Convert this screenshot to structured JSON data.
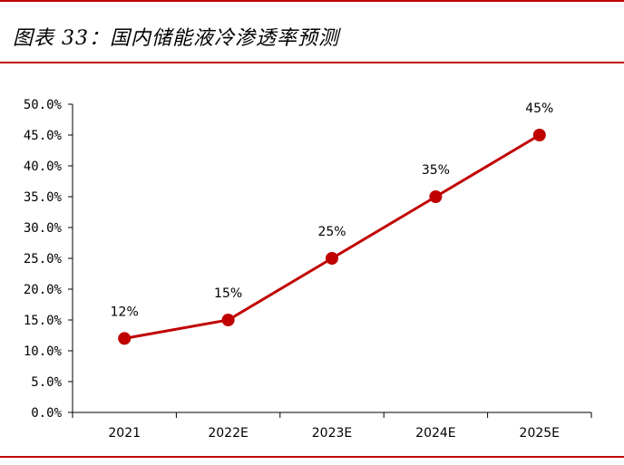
{
  "header": {
    "title": "图表 33：国内储能液冷渗透率预测"
  },
  "colors": {
    "accent": "#c00000",
    "line": "#c00000"
  },
  "chart_data": {
    "type": "line",
    "title": "",
    "xlabel": "",
    "ylabel": "",
    "categories": [
      "2021",
      "2022E",
      "2023E",
      "2024E",
      "2025E"
    ],
    "series": [
      {
        "values": [
          12,
          15,
          25,
          35,
          45
        ]
      }
    ],
    "data_labels": [
      "12%",
      "15%",
      "25%",
      "35%",
      "45%"
    ],
    "ylim": [
      0,
      50
    ],
    "y_ticks": [
      "0.0%",
      "5.0%",
      "10.0%",
      "15.0%",
      "20.0%",
      "25.0%",
      "30.0%",
      "35.0%",
      "40.0%",
      "45.0%",
      "50.0%"
    ],
    "grid": false,
    "legend": "none"
  }
}
